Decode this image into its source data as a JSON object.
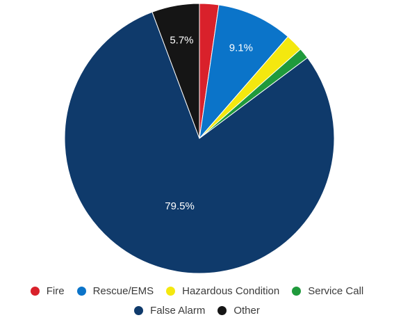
{
  "chart_data": {
    "type": "pie",
    "title": "",
    "slices": [
      {
        "name": "Fire",
        "value": 2.3,
        "label": "",
        "color": "#d9212b"
      },
      {
        "name": "Rescue/EMS",
        "value": 9.1,
        "label": "9.1%",
        "color": "#0b74c9"
      },
      {
        "name": "Hazardous Condition",
        "value": 2.1,
        "label": "",
        "color": "#f4e80f"
      },
      {
        "name": "Service Call",
        "value": 1.3,
        "label": "",
        "color": "#1f9a3c"
      },
      {
        "name": "False Alarm",
        "value": 79.5,
        "label": "79.5%",
        "color": "#0f3a6b"
      },
      {
        "name": "Other",
        "value": 5.7,
        "label": "5.7%",
        "color": "#151515"
      }
    ],
    "legend_position": "bottom",
    "legend_rows": [
      [
        "Fire",
        "Rescue/EMS",
        "Hazardous Condition",
        "Service Call"
      ],
      [
        "False Alarm",
        "Other"
      ]
    ]
  }
}
